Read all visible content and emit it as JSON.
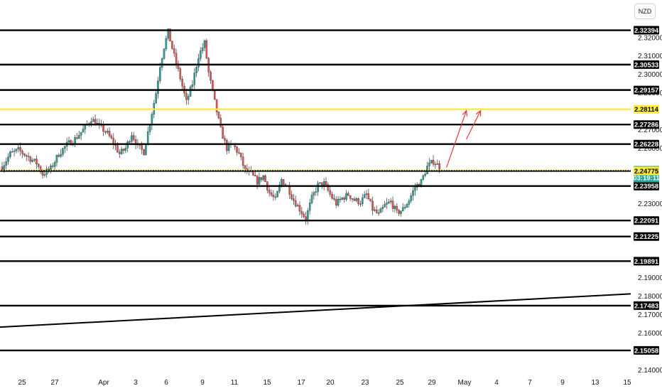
{
  "currency": "NZD",
  "colors": {
    "up": "#26a69a",
    "down": "#ef5350",
    "level": "#000000",
    "highlight": "#ffeb3b",
    "current": "#26a69a",
    "arrow": "#e53935",
    "trend": "#000000"
  },
  "chart_data": {
    "type": "candlestick",
    "x_ticks": [
      "25",
      "27",
      "Apr",
      "3",
      "6",
      "9",
      "11",
      "15",
      "17",
      "20",
      "23",
      "25",
      "29",
      "May",
      "4",
      "7",
      "9",
      "13",
      "15"
    ],
    "y_ticks": [
      "2.32000",
      "2.31000",
      "2.30000",
      "2.29000",
      "2.27000",
      "2.26000",
      "2.23000",
      "2.19000",
      "2.18000",
      "2.17000",
      "2.16000",
      "2.14000"
    ],
    "ylim": [
      2.139,
      2.338
    ],
    "levels": [
      {
        "label": "2.32394",
        "value": 2.32394,
        "highlight": false
      },
      {
        "label": "2.30533",
        "value": 2.30533,
        "highlight": false
      },
      {
        "label": "2.29157",
        "value": 2.29157,
        "highlight": false
      },
      {
        "label": "2.28114",
        "value": 2.28114,
        "highlight": true
      },
      {
        "label": "2.27286",
        "value": 2.27286,
        "highlight": false
      },
      {
        "label": "2.26228",
        "value": 2.26228,
        "highlight": false
      },
      {
        "label": "2.24775",
        "value": 2.24775,
        "highlight": false
      },
      {
        "label": "2.23958",
        "value": 2.23958,
        "highlight": false
      },
      {
        "label": "2.22091",
        "value": 2.22091,
        "highlight": false
      },
      {
        "label": "2.21225",
        "value": 2.21225,
        "highlight": false
      },
      {
        "label": "2.19891",
        "value": 2.19891,
        "highlight": false
      },
      {
        "label": "2.17483",
        "value": 2.17483,
        "highlight": false
      },
      {
        "label": "2.15058",
        "value": 2.15058,
        "highlight": false
      }
    ],
    "current_price": {
      "label": "2.24810",
      "value": 2.2481,
      "timer": "03:19:11"
    },
    "highlight_dotted_value": 2.2481,
    "trendline": {
      "start": 2.1632,
      "end": 2.1812
    },
    "anchors": [
      [
        0,
        2.25
      ],
      [
        4,
        2.257
      ],
      [
        8,
        2.259
      ],
      [
        12,
        2.256
      ],
      [
        17,
        2.252
      ],
      [
        20,
        2.246
      ],
      [
        24,
        2.249
      ],
      [
        28,
        2.257
      ],
      [
        32,
        2.262
      ],
      [
        36,
        2.265
      ],
      [
        40,
        2.27
      ],
      [
        44,
        2.276
      ],
      [
        48,
        2.272
      ],
      [
        52,
        2.268
      ],
      [
        55,
        2.263
      ],
      [
        58,
        2.257
      ],
      [
        61,
        2.26
      ],
      [
        64,
        2.268
      ],
      [
        67,
        2.261
      ],
      [
        70,
        2.258
      ],
      [
        73,
        2.274
      ],
      [
        76,
        2.29
      ],
      [
        78,
        2.305
      ],
      [
        80,
        2.315
      ],
      [
        82,
        2.323
      ],
      [
        85,
        2.31
      ],
      [
        88,
        2.298
      ],
      [
        91,
        2.285
      ],
      [
        94,
        2.295
      ],
      [
        97,
        2.31
      ],
      [
        100,
        2.317
      ],
      [
        102,
        2.301
      ],
      [
        105,
        2.285
      ],
      [
        108,
        2.27
      ],
      [
        111,
        2.26
      ],
      [
        114,
        2.262
      ],
      [
        117,
        2.257
      ],
      [
        120,
        2.248
      ],
      [
        123,
        2.246
      ],
      [
        126,
        2.242
      ],
      [
        129,
        2.245
      ],
      [
        132,
        2.236
      ],
      [
        135,
        2.232
      ],
      [
        138,
        2.243
      ],
      [
        141,
        2.239
      ],
      [
        144,
        2.232
      ],
      [
        147,
        2.227
      ],
      [
        150,
        2.222
      ],
      [
        153,
        2.233
      ],
      [
        156,
        2.24
      ],
      [
        159,
        2.241
      ],
      [
        162,
        2.235
      ],
      [
        165,
        2.23
      ],
      [
        168,
        2.233
      ],
      [
        171,
        2.235
      ],
      [
        174,
        2.232
      ],
      [
        177,
        2.231
      ],
      [
        180,
        2.235
      ],
      [
        183,
        2.227
      ],
      [
        186,
        2.224
      ],
      [
        189,
        2.229
      ],
      [
        192,
        2.231
      ],
      [
        195,
        2.225
      ],
      [
        198,
        2.227
      ],
      [
        201,
        2.232
      ],
      [
        204,
        2.239
      ],
      [
        207,
        2.242
      ],
      [
        210,
        2.25
      ],
      [
        213,
        2.253
      ],
      [
        216,
        2.25
      ]
    ],
    "bars_visible": 217
  }
}
